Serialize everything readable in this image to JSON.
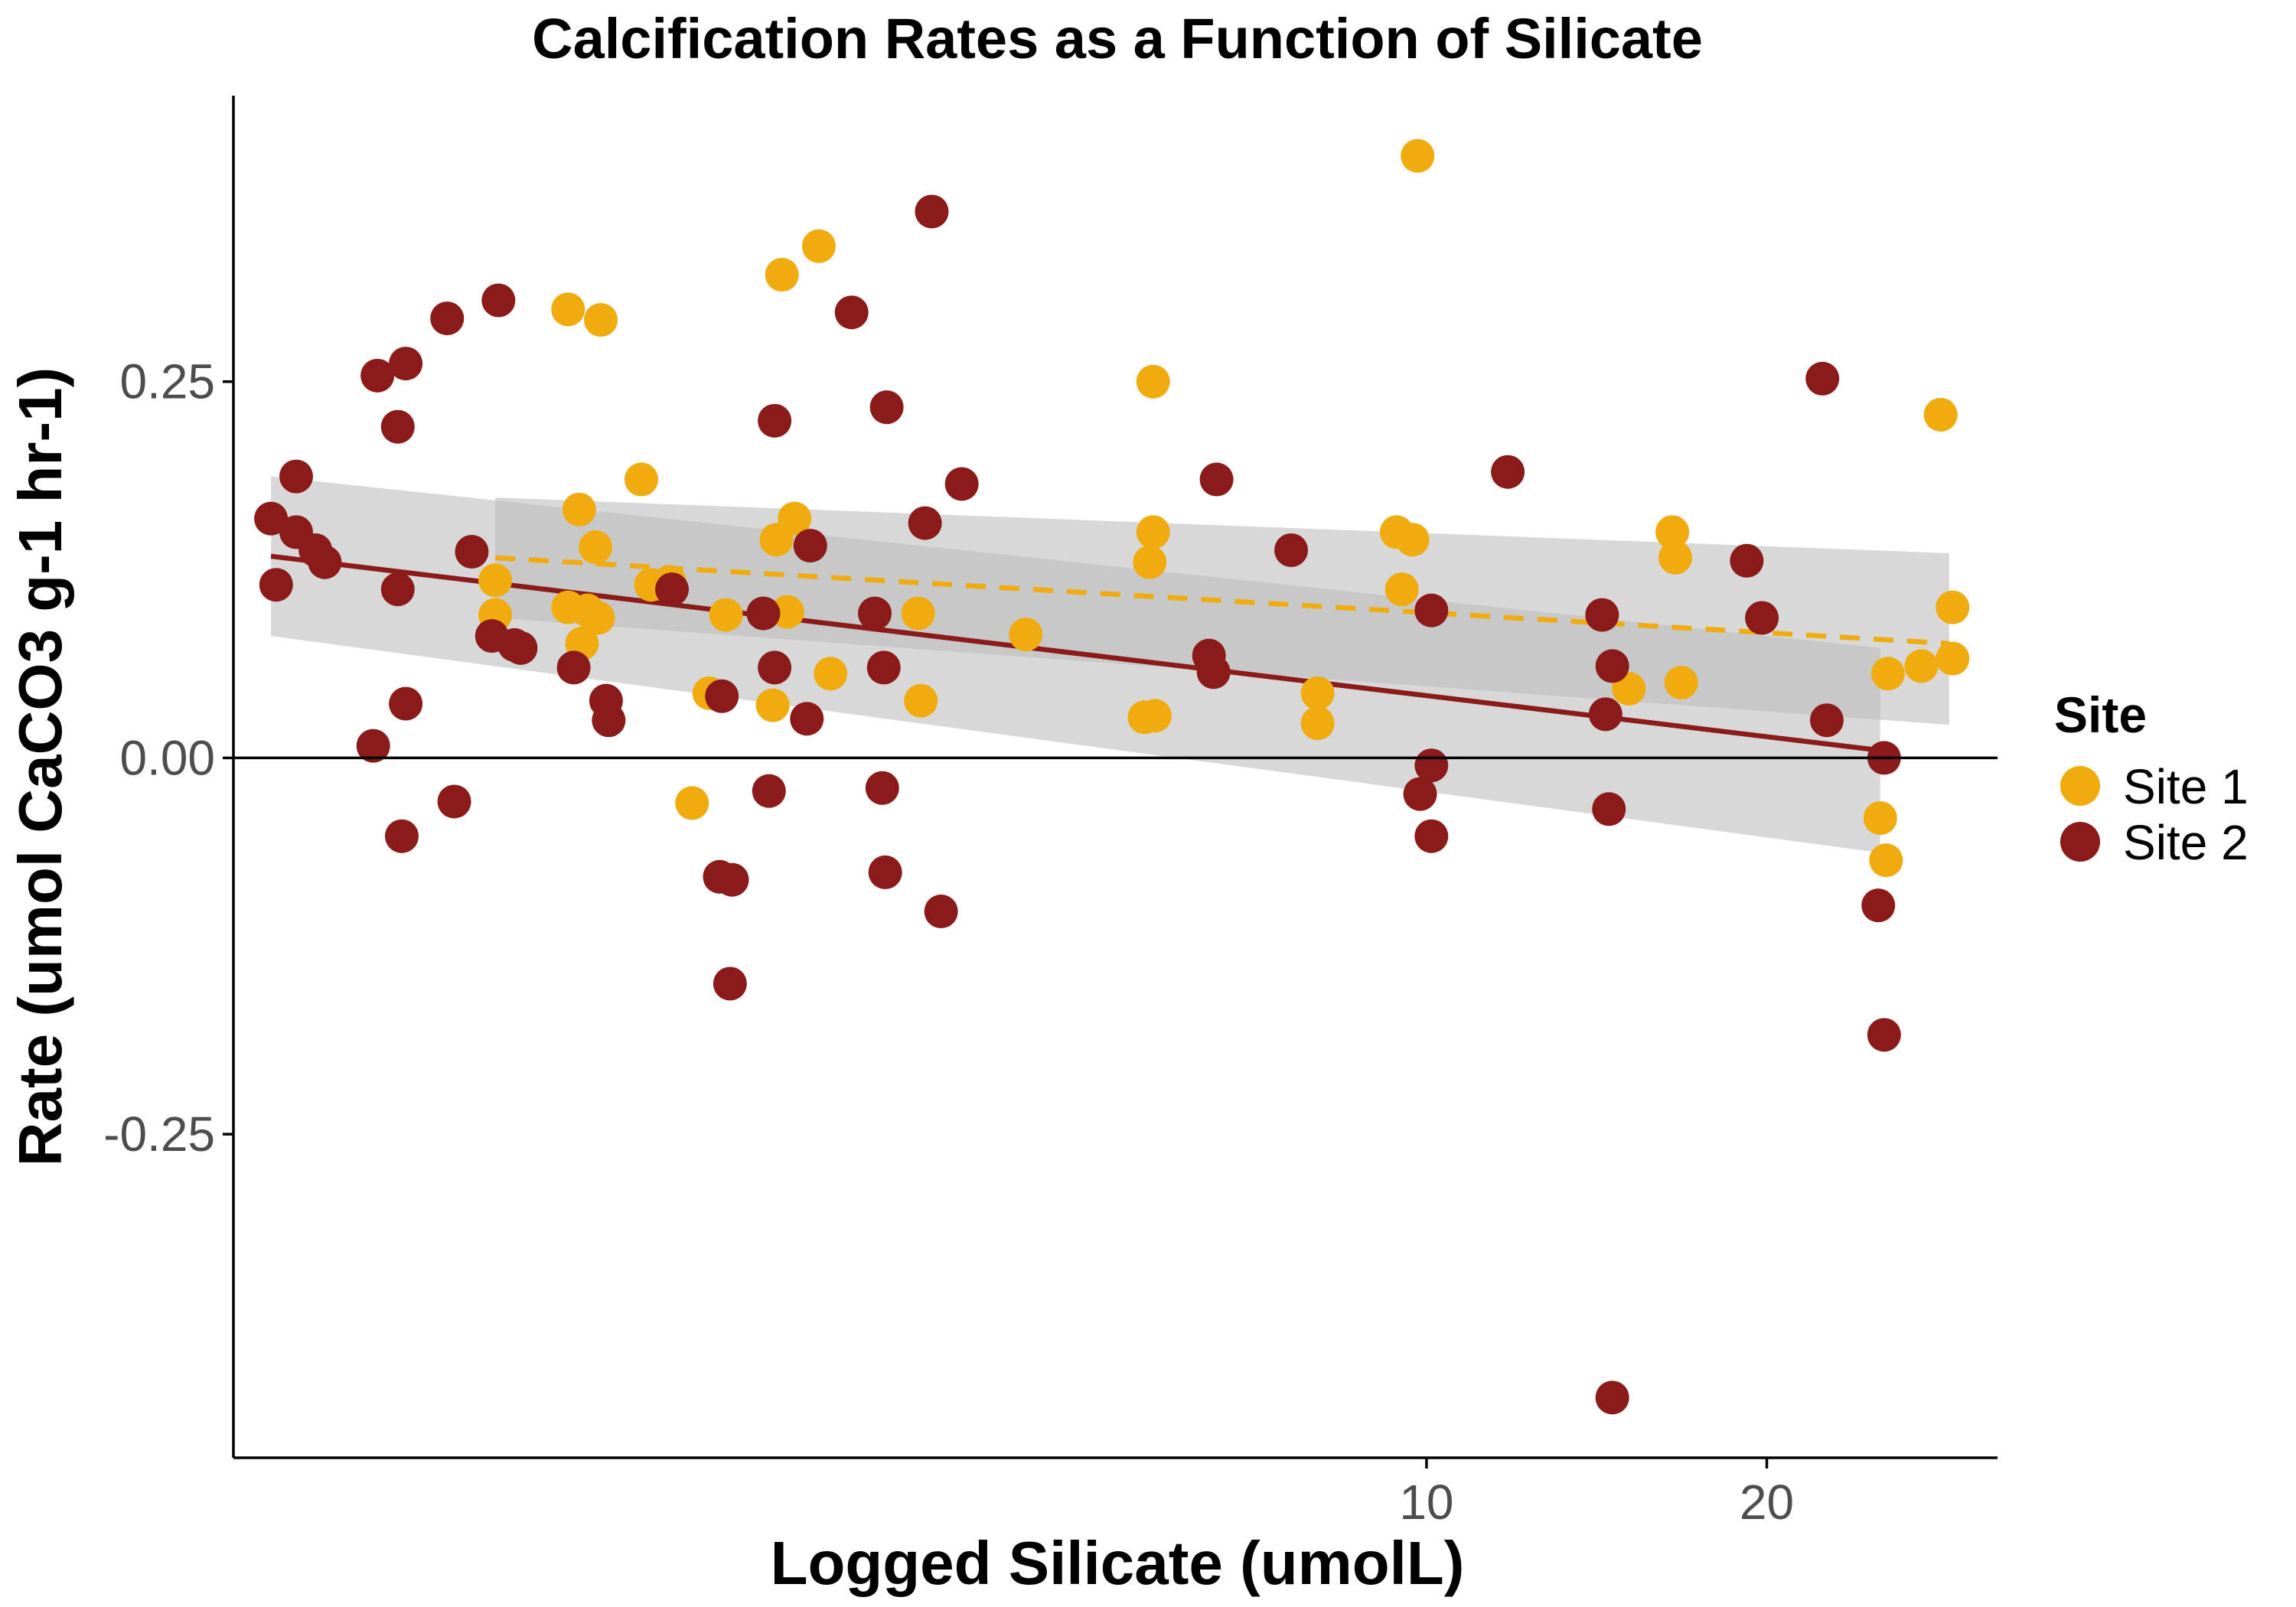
{
  "chart_data": {
    "type": "scatter",
    "title": "Calcification Rates as a Function of Silicate",
    "xlabel": "Logged Silicate (umolL)",
    "ylabel": "Rate (umol CaCO3 g-1 hr-1)",
    "x_scale": "log10",
    "xlim": [
      0.88,
      32
    ],
    "ylim": [
      -0.465,
      0.44
    ],
    "x_ticks": [
      10,
      20
    ],
    "x_tick_labels": [
      "10",
      "20"
    ],
    "y_ticks": [
      -0.25,
      0,
      0.25
    ],
    "y_tick_labels": [
      "-0.25",
      "0.00",
      "0.25"
    ],
    "reference_line_y": 0,
    "grid": false,
    "legend": {
      "title": "Site",
      "position": "right",
      "entries": [
        "Site 1",
        "Site 2"
      ]
    },
    "colors": {
      "Site 1": "#F0AB0F",
      "Site 2": "#8B1A1A",
      "ribbon": "#BEBEBE",
      "axis": "#000000"
    },
    "series": [
      {
        "name": "Site 1",
        "color": "#F0AB0F",
        "trend": {
          "style": "dashed",
          "x": [
            1.5,
            29.0
          ],
          "y": [
            0.133,
            0.076
          ],
          "ci_upper": [
            0.173,
            0.136
          ],
          "ci_lower": [
            0.093,
            0.022
          ]
        },
        "x": [
          1.5,
          1.5,
          1.74,
          1.74,
          1.78,
          1.79,
          1.81,
          1.84,
          1.85,
          1.86,
          2.02,
          2.06,
          2.14,
          2.24,
          2.32,
          2.4,
          2.64,
          2.66,
          2.69,
          2.72,
          2.76,
          2.9,
          2.97,
          3.55,
          3.57,
          4.42,
          5.63,
          5.69,
          5.73,
          5.73,
          5.75,
          8.01,
          8.01,
          9.41,
          9.51,
          9.72,
          9.82,
          15.1,
          16.5,
          16.6,
          16.8,
          25.2,
          25.5,
          25.6,
          27.4,
          28.5,
          29.2,
          29.2
        ],
        "y": [
          0.118,
          0.095,
          0.298,
          0.1,
          0.165,
          0.076,
          0.098,
          0.14,
          0.093,
          0.291,
          0.185,
          0.115,
          0.117,
          -0.03,
          0.043,
          0.095,
          0.035,
          0.145,
          0.321,
          0.097,
          0.159,
          0.34,
          0.056,
          0.096,
          0.038,
          0.082,
          0.027,
          0.13,
          0.15,
          0.25,
          0.028,
          0.043,
          0.023,
          0.15,
          0.112,
          0.145,
          0.4,
          0.046,
          0.15,
          0.133,
          0.05,
          -0.04,
          -0.068,
          0.056,
          0.061,
          0.228,
          0.1,
          0.066
        ]
      },
      {
        "name": "Site 2",
        "color": "#8B1A1A",
        "trend": {
          "style": "solid",
          "x": [
            0.95,
            25.2
          ],
          "y": [
            0.134,
            0.005
          ],
          "ci_upper": [
            0.187,
            0.073
          ],
          "ci_lower": [
            0.081,
            -0.063
          ]
        },
        "x": [
          0.95,
          0.96,
          1.0,
          1.0,
          1.04,
          1.06,
          1.17,
          1.18,
          1.23,
          1.23,
          1.24,
          1.25,
          1.25,
          1.36,
          1.38,
          1.43,
          1.49,
          1.51,
          1.56,
          1.58,
          1.76,
          1.88,
          1.89,
          2.15,
          2.37,
          2.38,
          2.42,
          2.43,
          2.59,
          2.62,
          2.65,
          2.65,
          2.83,
          2.85,
          3.1,
          3.25,
          3.3,
          3.31,
          3.32,
          3.33,
          3.6,
          3.65,
          3.72,
          3.88,
          6.42,
          6.48,
          6.52,
          7.59,
          9.87,
          10.1,
          10.1,
          10.1,
          11.8,
          14.3,
          14.4,
          14.5,
          14.6,
          14.6,
          19.2,
          19.8,
          22.4,
          22.6,
          25.1,
          25.4,
          25.4
        ],
        "y": [
          0.159,
          0.115,
          0.15,
          0.187,
          0.138,
          0.13,
          0.008,
          0.254,
          0.112,
          0.22,
          -0.052,
          0.036,
          0.262,
          0.292,
          -0.029,
          0.137,
          0.081,
          0.304,
          0.075,
          0.073,
          0.06,
          0.038,
          0.025,
          0.112,
          -0.079,
          0.041,
          -0.15,
          -0.081,
          0.096,
          -0.022,
          0.06,
          0.224,
          0.026,
          0.141,
          0.296,
          0.096,
          -0.02,
          0.06,
          -0.076,
          0.233,
          0.156,
          0.363,
          -0.102,
          0.182,
          0.068,
          0.057,
          0.185,
          0.138,
          -0.024,
          -0.052,
          0.098,
          -0.005,
          0.19,
          0.095,
          0.029,
          -0.034,
          -0.425,
          0.061,
          0.131,
          0.093,
          0.252,
          0.025,
          -0.098,
          -0.184,
          0.0
        ]
      }
    ]
  }
}
